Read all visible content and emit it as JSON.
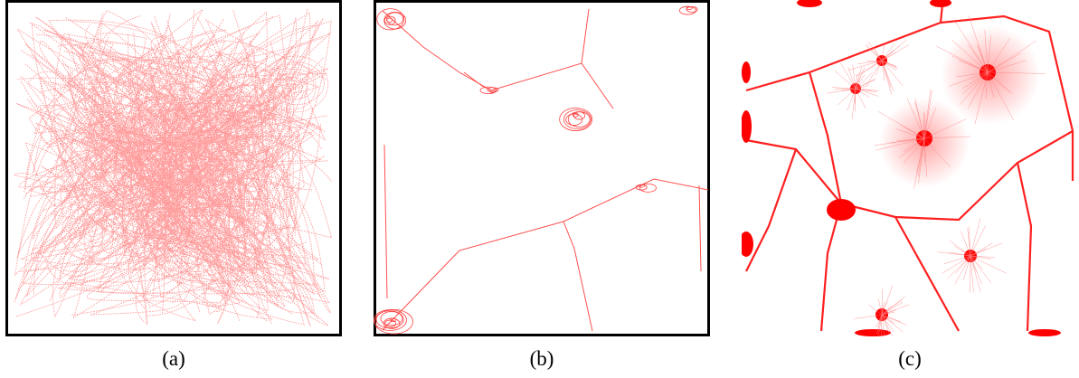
{
  "colors": {
    "trail": "#ff4040",
    "trail_light": "#ff9c9c",
    "dense": "#ff0000",
    "frame": "#000000",
    "background": "#ffffff"
  },
  "panels": [
    {
      "id": "a",
      "caption": "(a)",
      "description_icon": "scatter-trails-icon"
    },
    {
      "id": "b",
      "caption": "(b)",
      "description_icon": "wall-trails-icon"
    },
    {
      "id": "c",
      "caption": "(c)",
      "description_icon": "voronoi-density-icon"
    }
  ]
}
